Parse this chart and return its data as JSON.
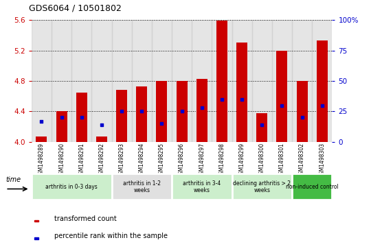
{
  "title": "GDS6064 / 10501802",
  "samples": [
    "GSM1498289",
    "GSM1498290",
    "GSM1498291",
    "GSM1498292",
    "GSM1498293",
    "GSM1498294",
    "GSM1498295",
    "GSM1498296",
    "GSM1498297",
    "GSM1498298",
    "GSM1498299",
    "GSM1498300",
    "GSM1498301",
    "GSM1498302",
    "GSM1498303"
  ],
  "red_values": [
    4.07,
    4.4,
    4.65,
    4.07,
    4.68,
    4.73,
    4.8,
    4.8,
    4.83,
    5.59,
    5.3,
    4.38,
    5.2,
    4.8,
    5.33
  ],
  "blue_percentiles": [
    17,
    20,
    20,
    14,
    25,
    25,
    15,
    25,
    28,
    35,
    35,
    14,
    30,
    20,
    30
  ],
  "y_min": 4.0,
  "y_max": 5.6,
  "y_ticks": [
    4.0,
    4.4,
    4.8,
    5.2,
    5.6
  ],
  "y_color": "#cc0000",
  "y2_ticks": [
    0,
    25,
    50,
    75,
    100
  ],
  "y2_color": "#0000cc",
  "bar_color": "#cc0000",
  "blue_color": "#0000cc",
  "bg_color": "#ffffff",
  "groups_def": [
    [
      0,
      3,
      "arthritis in 0-3 days",
      "#cceecc"
    ],
    [
      4,
      6,
      "arthritis in 1-2\nweeks",
      "#e0e0e0"
    ],
    [
      7,
      9,
      "arthritis in 3-4\nweeks",
      "#cceecc"
    ],
    [
      10,
      12,
      "declining arthritis > 2\nweeks",
      "#cceecc"
    ],
    [
      13,
      14,
      "non-induced control",
      "#44bb44"
    ]
  ],
  "sample_bg": "#cccccc"
}
